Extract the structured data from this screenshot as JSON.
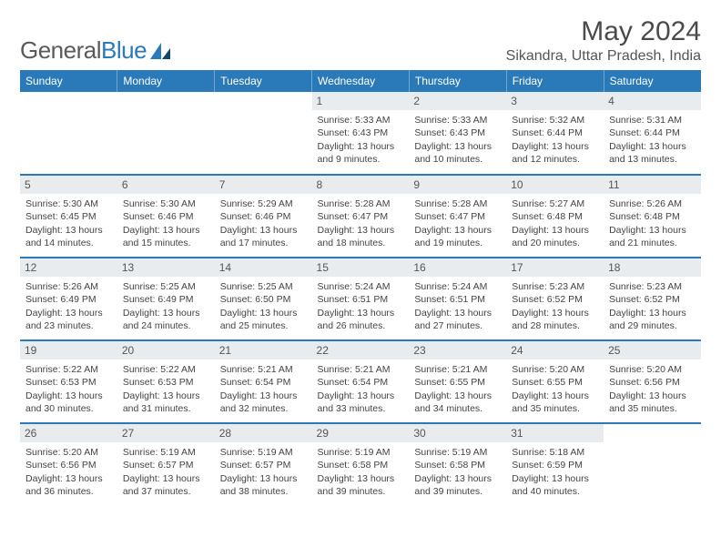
{
  "brand": {
    "part1": "General",
    "part2": "Blue"
  },
  "title": "May 2024",
  "location": "Sikandra, Uttar Pradesh, India",
  "colors": {
    "accent": "#2a7ab9",
    "header_shade": "#e8ecef",
    "text": "#444444",
    "bg": "#ffffff"
  },
  "weekdays": [
    "Sunday",
    "Monday",
    "Tuesday",
    "Wednesday",
    "Thursday",
    "Friday",
    "Saturday"
  ],
  "first_weekday_index": 3,
  "days": [
    {
      "n": 1,
      "rise": "5:33 AM",
      "set": "6:43 PM",
      "dl": "13 hours and 9 minutes."
    },
    {
      "n": 2,
      "rise": "5:33 AM",
      "set": "6:43 PM",
      "dl": "13 hours and 10 minutes."
    },
    {
      "n": 3,
      "rise": "5:32 AM",
      "set": "6:44 PM",
      "dl": "13 hours and 12 minutes."
    },
    {
      "n": 4,
      "rise": "5:31 AM",
      "set": "6:44 PM",
      "dl": "13 hours and 13 minutes."
    },
    {
      "n": 5,
      "rise": "5:30 AM",
      "set": "6:45 PM",
      "dl": "13 hours and 14 minutes."
    },
    {
      "n": 6,
      "rise": "5:30 AM",
      "set": "6:46 PM",
      "dl": "13 hours and 15 minutes."
    },
    {
      "n": 7,
      "rise": "5:29 AM",
      "set": "6:46 PM",
      "dl": "13 hours and 17 minutes."
    },
    {
      "n": 8,
      "rise": "5:28 AM",
      "set": "6:47 PM",
      "dl": "13 hours and 18 minutes."
    },
    {
      "n": 9,
      "rise": "5:28 AM",
      "set": "6:47 PM",
      "dl": "13 hours and 19 minutes."
    },
    {
      "n": 10,
      "rise": "5:27 AM",
      "set": "6:48 PM",
      "dl": "13 hours and 20 minutes."
    },
    {
      "n": 11,
      "rise": "5:26 AM",
      "set": "6:48 PM",
      "dl": "13 hours and 21 minutes."
    },
    {
      "n": 12,
      "rise": "5:26 AM",
      "set": "6:49 PM",
      "dl": "13 hours and 23 minutes."
    },
    {
      "n": 13,
      "rise": "5:25 AM",
      "set": "6:49 PM",
      "dl": "13 hours and 24 minutes."
    },
    {
      "n": 14,
      "rise": "5:25 AM",
      "set": "6:50 PM",
      "dl": "13 hours and 25 minutes."
    },
    {
      "n": 15,
      "rise": "5:24 AM",
      "set": "6:51 PM",
      "dl": "13 hours and 26 minutes."
    },
    {
      "n": 16,
      "rise": "5:24 AM",
      "set": "6:51 PM",
      "dl": "13 hours and 27 minutes."
    },
    {
      "n": 17,
      "rise": "5:23 AM",
      "set": "6:52 PM",
      "dl": "13 hours and 28 minutes."
    },
    {
      "n": 18,
      "rise": "5:23 AM",
      "set": "6:52 PM",
      "dl": "13 hours and 29 minutes."
    },
    {
      "n": 19,
      "rise": "5:22 AM",
      "set": "6:53 PM",
      "dl": "13 hours and 30 minutes."
    },
    {
      "n": 20,
      "rise": "5:22 AM",
      "set": "6:53 PM",
      "dl": "13 hours and 31 minutes."
    },
    {
      "n": 21,
      "rise": "5:21 AM",
      "set": "6:54 PM",
      "dl": "13 hours and 32 minutes."
    },
    {
      "n": 22,
      "rise": "5:21 AM",
      "set": "6:54 PM",
      "dl": "13 hours and 33 minutes."
    },
    {
      "n": 23,
      "rise": "5:21 AM",
      "set": "6:55 PM",
      "dl": "13 hours and 34 minutes."
    },
    {
      "n": 24,
      "rise": "5:20 AM",
      "set": "6:55 PM",
      "dl": "13 hours and 35 minutes."
    },
    {
      "n": 25,
      "rise": "5:20 AM",
      "set": "6:56 PM",
      "dl": "13 hours and 35 minutes."
    },
    {
      "n": 26,
      "rise": "5:20 AM",
      "set": "6:56 PM",
      "dl": "13 hours and 36 minutes."
    },
    {
      "n": 27,
      "rise": "5:19 AM",
      "set": "6:57 PM",
      "dl": "13 hours and 37 minutes."
    },
    {
      "n": 28,
      "rise": "5:19 AM",
      "set": "6:57 PM",
      "dl": "13 hours and 38 minutes."
    },
    {
      "n": 29,
      "rise": "5:19 AM",
      "set": "6:58 PM",
      "dl": "13 hours and 39 minutes."
    },
    {
      "n": 30,
      "rise": "5:19 AM",
      "set": "6:58 PM",
      "dl": "13 hours and 39 minutes."
    },
    {
      "n": 31,
      "rise": "5:18 AM",
      "set": "6:59 PM",
      "dl": "13 hours and 40 minutes."
    }
  ],
  "labels": {
    "sunrise": "Sunrise:",
    "sunset": "Sunset:",
    "daylight": "Daylight:"
  }
}
